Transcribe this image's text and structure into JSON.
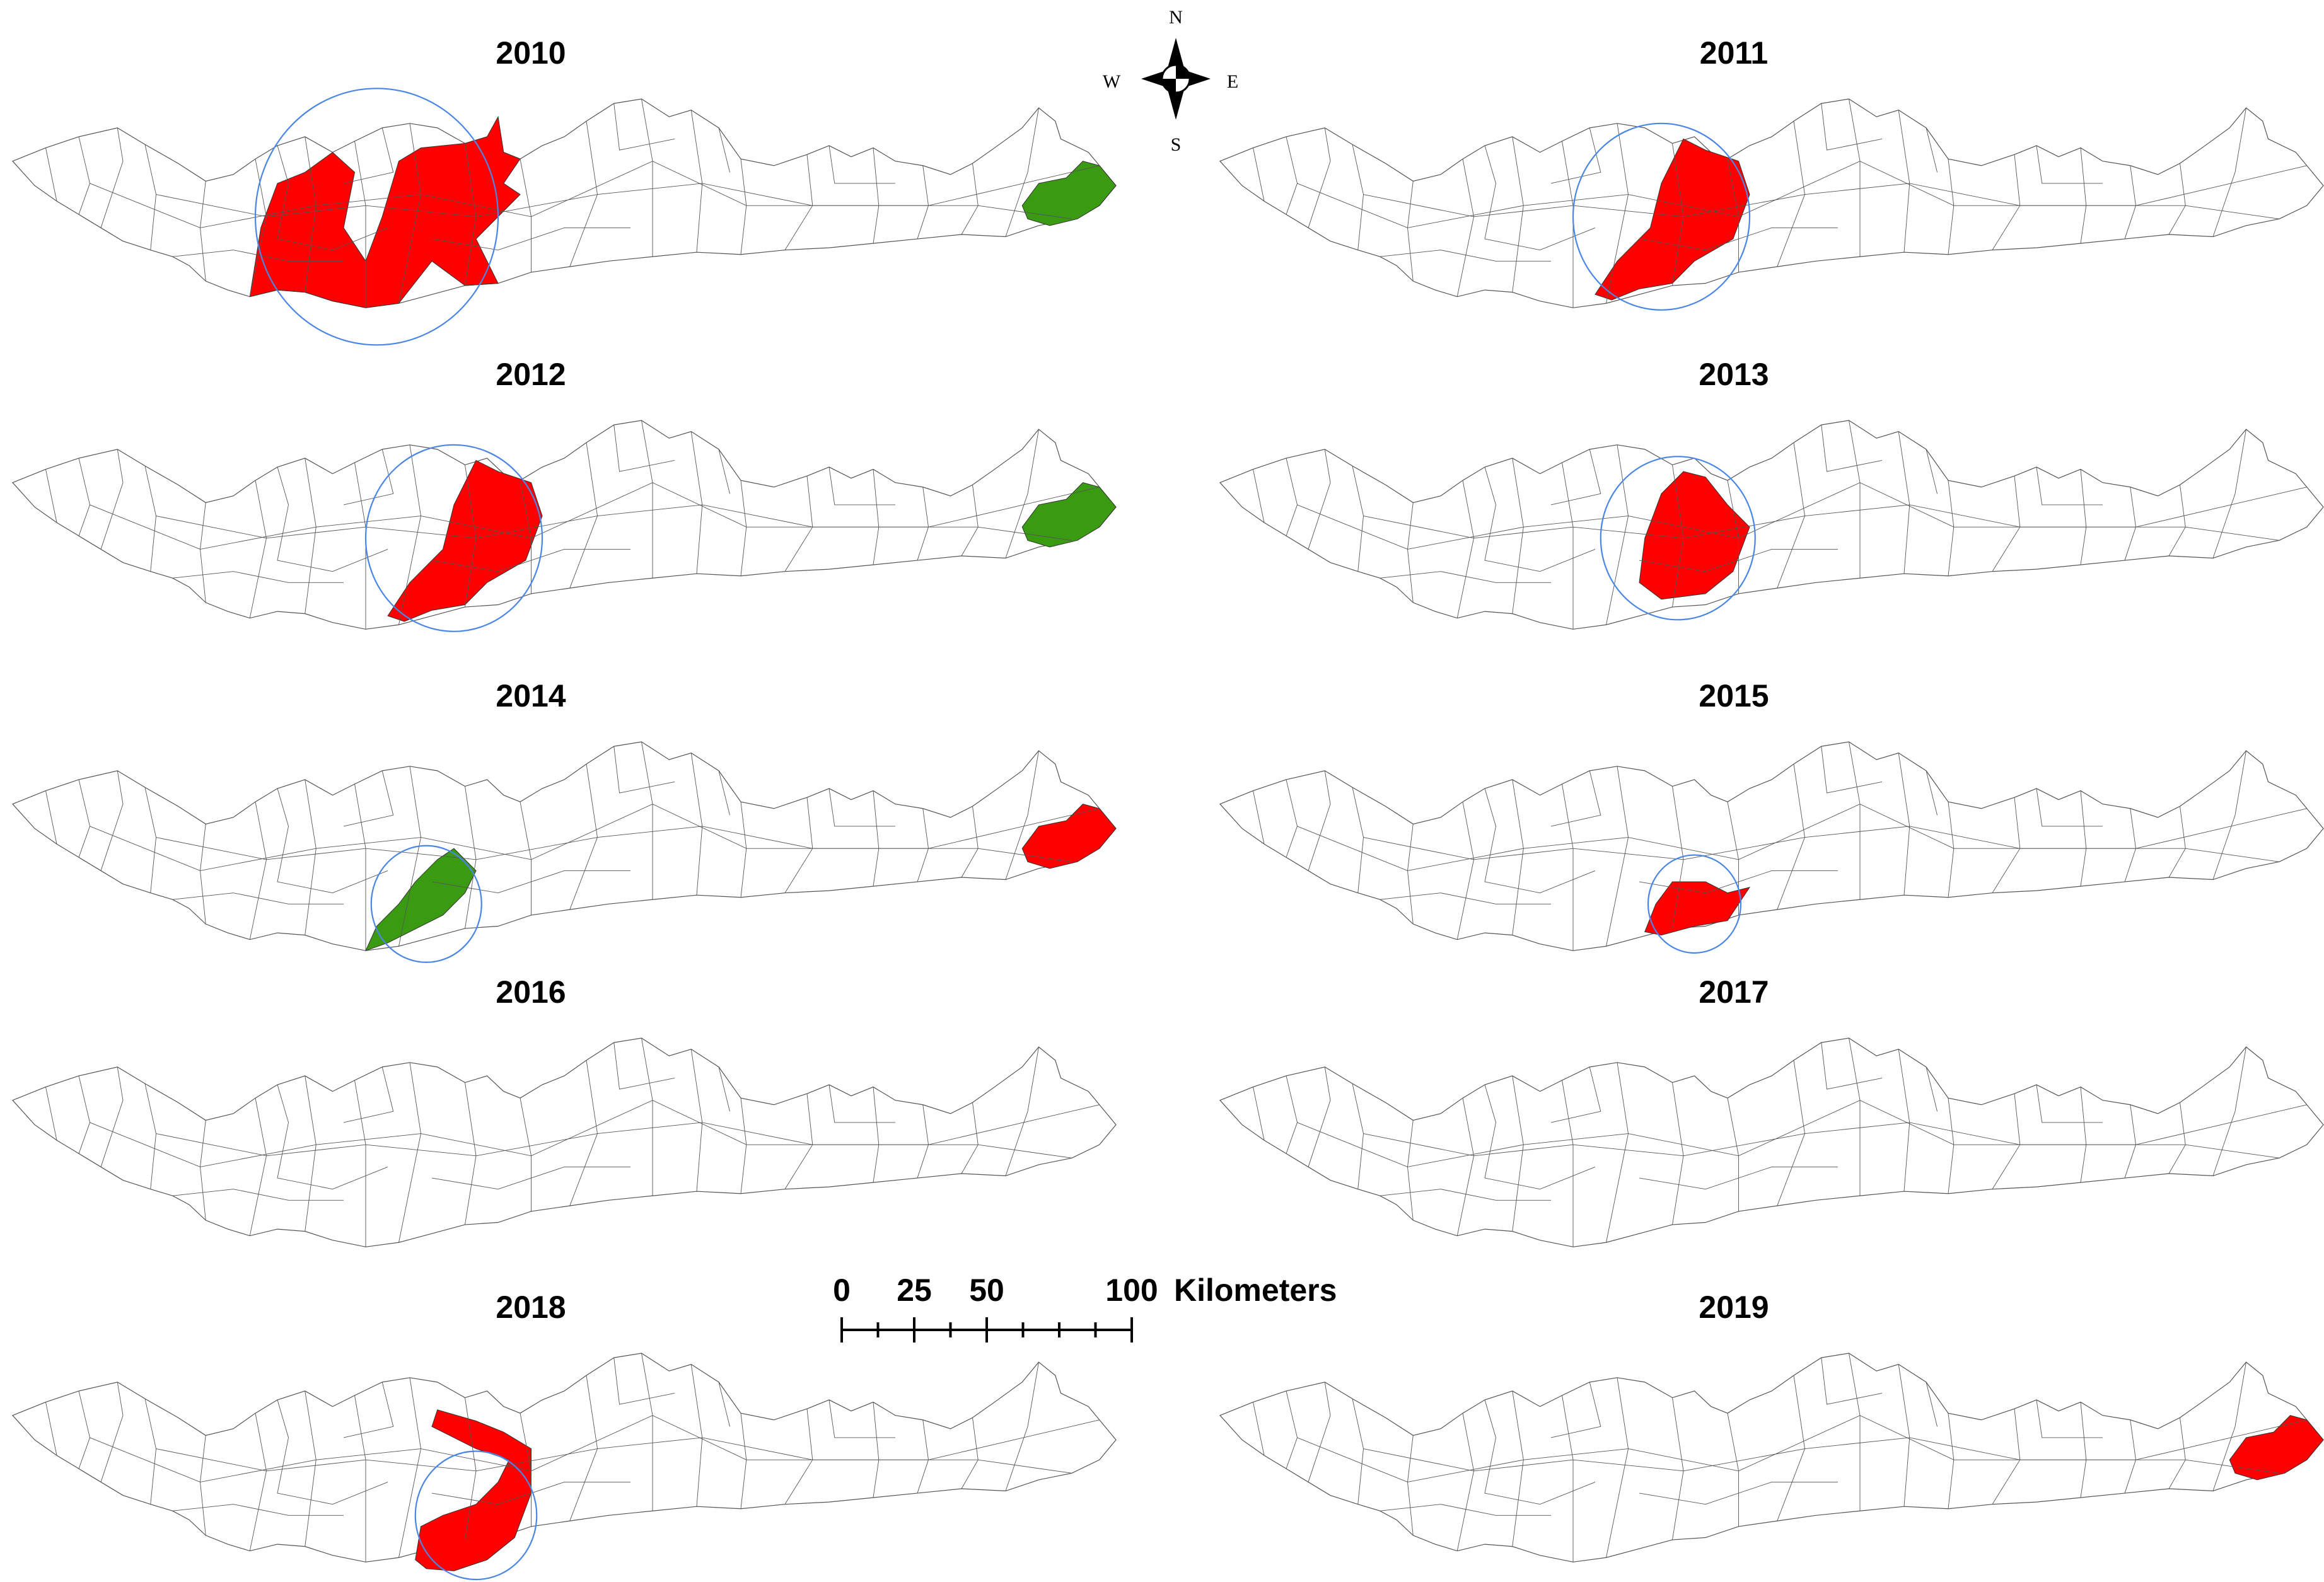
{
  "panels": [
    {
      "year": "2010",
      "hotspot": [
        "west-center"
      ],
      "coldspot": [
        "east"
      ]
    },
    {
      "year": "2011",
      "hotspot": [
        "center"
      ],
      "coldspot": []
    },
    {
      "year": "2012",
      "hotspot": [
        "center"
      ],
      "coldspot": [
        "east"
      ]
    },
    {
      "year": "2013",
      "hotspot": [
        "center-north"
      ],
      "coldspot": []
    },
    {
      "year": "2014",
      "hotspot": [
        "east"
      ],
      "coldspot": [
        "south-center"
      ]
    },
    {
      "year": "2015",
      "hotspot": [
        "center-small"
      ],
      "coldspot": []
    },
    {
      "year": "2016",
      "hotspot": [],
      "coldspot": []
    },
    {
      "year": "2017",
      "hotspot": [],
      "coldspot": []
    },
    {
      "year": "2018",
      "hotspot": [
        "center-split"
      ],
      "coldspot": []
    },
    {
      "year": "2019",
      "hotspot": [
        "east"
      ],
      "coldspot": []
    }
  ],
  "colors": {
    "hotspot": "#ff0000",
    "coldspot": "#3a9a12",
    "cluster_circle": "#4a86e8",
    "boundary": "#555555"
  },
  "compass": {
    "n": "N",
    "s": "S",
    "e": "E",
    "w": "W"
  },
  "scale_bar": {
    "ticks": [
      "0",
      "25",
      "50",
      "100"
    ],
    "unit": "Kilometers"
  }
}
